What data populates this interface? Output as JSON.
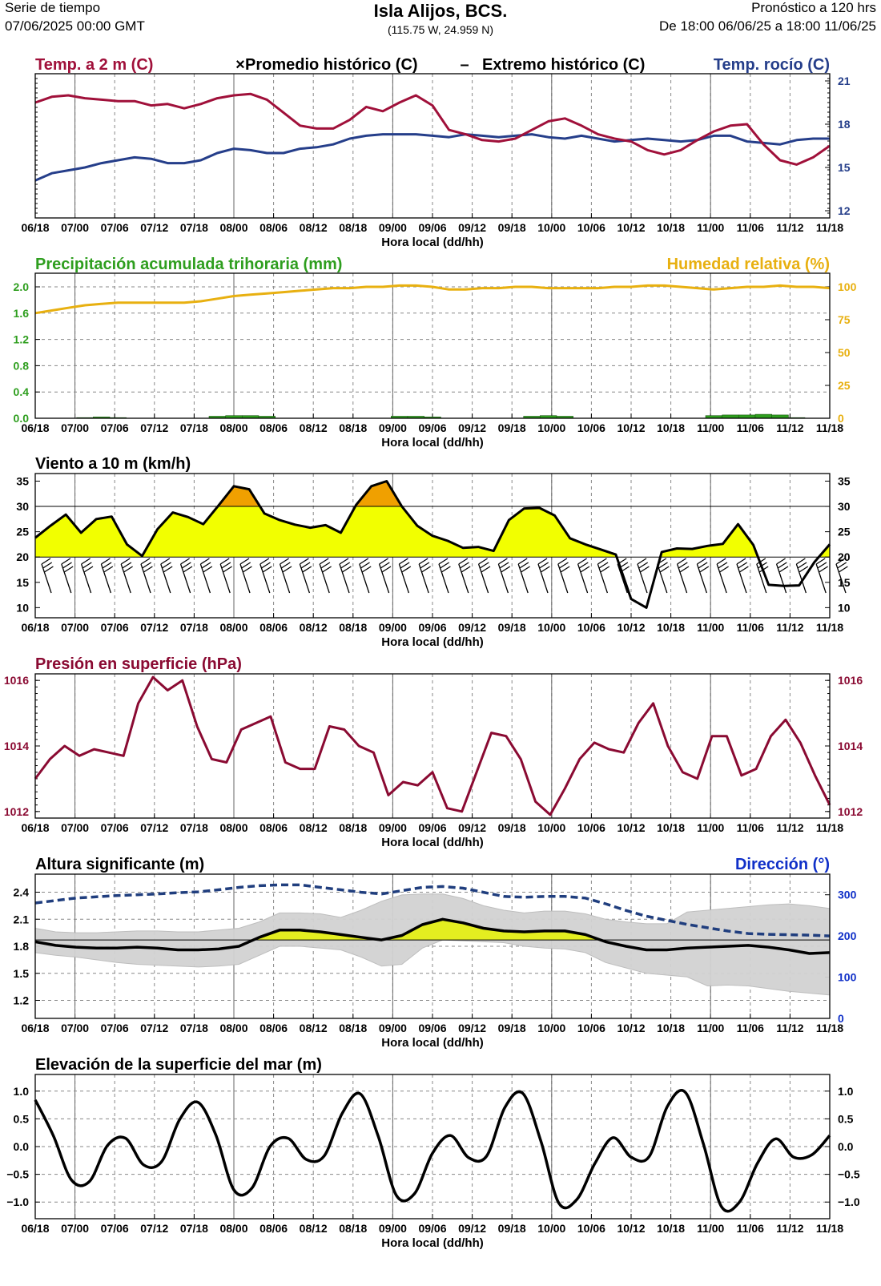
{
  "header": {
    "left1": "Serie de tiempo",
    "left2": "07/06/2025 00:00 GMT",
    "title": "Isla Alijos,  BCS.",
    "coords": "(115.75 W, 24.959 N)",
    "right1": "Pronóstico a 120 hrs",
    "right2": "De 18:00 06/06/25 a 18:00 11/06/25"
  },
  "xaxis": {
    "label": "Hora local (dd/hh)",
    "ticks": [
      "06/18",
      "07/00",
      "07/06",
      "07/12",
      "07/18",
      "08/00",
      "08/06",
      "08/12",
      "08/18",
      "09/00",
      "09/06",
      "09/12",
      "09/18",
      "10/00",
      "10/06",
      "10/12",
      "10/18",
      "11/00",
      "11/06",
      "11/12",
      "11/18"
    ]
  },
  "colors": {
    "temp": "#A0103A",
    "dew": "#253E8A",
    "precip": "#2E9E1E",
    "humidity": "#E8B010",
    "wind_fill_yellow": "#F2FF00",
    "wind_fill_orange": "#F0A000",
    "pressure": "#8A0A32",
    "wave_fill": "#E4EE20",
    "wave_band": "#D2D2D2",
    "direction": "#1030C8",
    "direction_line": "#203E7E"
  },
  "chart_data": [
    {
      "type": "line",
      "title": "Temp. a 2 m (C)",
      "legend": [
        "Promedio histórico (C)",
        "Extremo histórico (C)"
      ],
      "legend_symbols": [
        "×",
        "–"
      ],
      "y2label": "Temp. rocío (C)",
      "yticks_right": [
        "21",
        "18",
        "15",
        "12"
      ],
      "ylim": [
        11.5,
        21.5
      ],
      "series": [
        {
          "name": "Temp. a 2 m (C)",
          "values": [
            19.5,
            19.9,
            20.0,
            19.8,
            19.7,
            19.6,
            19.6,
            19.3,
            19.4,
            19.1,
            19.4,
            19.8,
            20.0,
            20.1,
            19.7,
            18.8,
            17.9,
            17.7,
            17.7,
            18.3,
            19.2,
            18.9,
            19.5,
            20.0,
            19.3,
            17.6,
            17.3,
            16.9,
            16.8,
            17.0,
            17.6,
            18.2,
            18.4,
            17.9,
            17.3,
            17.0,
            16.8,
            16.2,
            15.9,
            16.2,
            16.9,
            17.5,
            17.9,
            18.0,
            16.6,
            15.5,
            15.2,
            15.7,
            16.5
          ]
        },
        {
          "name": "Temp. rocío (C)",
          "values": [
            14.1,
            14.6,
            14.8,
            15.0,
            15.3,
            15.5,
            15.7,
            15.6,
            15.3,
            15.3,
            15.5,
            16.0,
            16.3,
            16.2,
            16.0,
            16.0,
            16.3,
            16.4,
            16.6,
            17.0,
            17.2,
            17.3,
            17.3,
            17.3,
            17.2,
            17.1,
            17.3,
            17.2,
            17.1,
            17.2,
            17.3,
            17.1,
            17.0,
            17.2,
            17.0,
            16.8,
            16.9,
            17.0,
            16.9,
            16.8,
            16.9,
            17.2,
            17.2,
            16.8,
            16.7,
            16.6,
            16.9,
            17.0,
            17.0
          ]
        }
      ]
    },
    {
      "type": "line",
      "title": "Precipitación acumulada trihoraria (mm)",
      "y2label": "Humedad relativa (%)",
      "yticks_left": [
        "2.0",
        "1.6",
        "1.2",
        "0.8",
        "0.4",
        "0.0"
      ],
      "yticks_right": [
        "100",
        "75",
        "50",
        "25",
        "0"
      ],
      "ylim": [
        0,
        2.0
      ],
      "y2lim": [
        0,
        100
      ],
      "series": [
        {
          "name": "Humedad relativa (%)",
          "values": [
            80,
            82,
            84,
            86,
            87,
            88,
            88,
            88,
            88,
            88,
            89,
            91,
            93,
            94,
            95,
            96,
            97,
            98,
            99,
            99,
            100,
            100,
            101,
            101,
            100,
            98,
            98,
            99,
            99,
            100,
            100,
            99,
            99,
            99,
            99,
            100,
            100,
            101,
            101,
            100,
            99,
            98,
            99,
            100,
            100,
            101,
            100,
            100,
            99
          ]
        },
        {
          "name": "Precipitación acumulada trihoraria (mm)",
          "values": [
            0,
            0,
            0,
            0.01,
            0.02,
            0.01,
            0,
            0,
            0,
            0,
            0,
            0.03,
            0.04,
            0.04,
            0.03,
            0,
            0,
            0,
            0,
            0,
            0,
            0,
            0.03,
            0.03,
            0.02,
            0,
            0,
            0,
            0,
            0,
            0.03,
            0.04,
            0.03,
            0,
            0,
            0,
            0,
            0,
            0,
            0,
            0,
            0.04,
            0.05,
            0.05,
            0.06,
            0.05,
            0.01,
            0,
            0
          ]
        }
      ]
    },
    {
      "type": "area",
      "title": "Viento a 10 m (km/h)",
      "yticks": [
        "35",
        "30",
        "25",
        "20",
        "15",
        "10"
      ],
      "ylim": [
        8,
        36.5
      ],
      "series": [
        {
          "name": "Viento a 10 m (km/h)",
          "values": [
            23.8,
            26.2,
            28.4,
            24.8,
            27.5,
            28.0,
            22.5,
            20.2,
            25.5,
            28.8,
            27.9,
            26.5,
            30.2,
            34.0,
            33.4,
            28.6,
            27.3,
            26.4,
            25.8,
            26.3,
            24.8,
            30.3,
            34.0,
            35.0,
            30.0,
            26.2,
            24.2,
            23.2,
            21.8,
            22.0,
            21.2,
            27.3,
            29.6,
            29.7,
            28.2,
            23.7,
            22.5,
            21.5,
            20.5,
            11.7,
            10.0,
            21.0,
            21.7,
            21.6,
            22.2,
            22.6,
            26.5,
            22.4,
            14.5,
            14.3,
            14.4,
            19.0,
            22.5
          ]
        }
      ]
    },
    {
      "type": "line",
      "title": "Presión en superficie (hPa)",
      "yticks": [
        "1016",
        "1014",
        "1012"
      ],
      "ylim": [
        1011.8,
        1016.2
      ],
      "series": [
        {
          "name": "Presión en superficie (hPa)",
          "values": [
            1013.0,
            1013.6,
            1014.0,
            1013.7,
            1013.9,
            1013.8,
            1013.7,
            1015.3,
            1016.1,
            1015.7,
            1016.0,
            1014.6,
            1013.6,
            1013.5,
            1014.5,
            1014.7,
            1014.9,
            1013.5,
            1013.3,
            1013.3,
            1014.6,
            1014.5,
            1014.0,
            1013.8,
            1012.5,
            1012.9,
            1012.8,
            1013.2,
            1012.1,
            1012.0,
            1013.2,
            1014.4,
            1014.3,
            1013.6,
            1012.3,
            1011.9,
            1012.7,
            1013.6,
            1014.1,
            1013.9,
            1013.8,
            1014.7,
            1015.3,
            1014.0,
            1013.2,
            1013.0,
            1014.3,
            1014.3,
            1013.1,
            1013.3,
            1014.3,
            1014.8,
            1014.1,
            1013.1,
            1012.2
          ]
        }
      ]
    },
    {
      "type": "area",
      "title": "Altura significante (m)",
      "y2label": "Dirección (°)",
      "yticks_left": [
        "2.4",
        "2.1",
        "1.8",
        "1.5",
        "1.2"
      ],
      "yticks_right": [
        "300",
        "200",
        "100",
        "0"
      ],
      "ylim": [
        1.0,
        2.6
      ],
      "y2lim": [
        0,
        350
      ],
      "series": [
        {
          "name": "Altura significante (m)",
          "values": [
            1.85,
            1.81,
            1.79,
            1.78,
            1.78,
            1.79,
            1.78,
            1.76,
            1.76,
            1.77,
            1.8,
            1.9,
            1.98,
            1.98,
            1.96,
            1.93,
            1.9,
            1.87,
            1.92,
            2.04,
            2.1,
            2.06,
            2.0,
            1.97,
            1.96,
            1.97,
            1.97,
            1.93,
            1.85,
            1.8,
            1.76,
            1.76,
            1.78,
            1.79,
            1.8,
            1.81,
            1.79,
            1.76,
            1.72,
            1.73
          ]
        },
        {
          "name": "Rango superior (m)",
          "values": [
            2.0,
            1.96,
            1.95,
            1.95,
            1.96,
            1.97,
            1.97,
            1.96,
            1.96,
            1.98,
            2.0,
            2.07,
            2.17,
            2.17,
            2.16,
            2.12,
            2.2,
            2.3,
            2.37,
            2.38,
            2.38,
            2.33,
            2.25,
            2.2,
            2.17,
            2.19,
            2.19,
            2.16,
            2.1,
            2.07,
            2.05,
            2.05,
            2.18,
            2.2,
            2.22,
            2.24,
            2.26,
            2.27,
            2.25,
            2.22
          ]
        },
        {
          "name": "Rango inferior (m)",
          "values": [
            1.73,
            1.7,
            1.68,
            1.65,
            1.62,
            1.6,
            1.59,
            1.58,
            1.57,
            1.58,
            1.6,
            1.7,
            1.8,
            1.8,
            1.78,
            1.76,
            1.68,
            1.58,
            1.6,
            1.78,
            1.87,
            1.86,
            1.85,
            1.84,
            1.8,
            1.78,
            1.77,
            1.73,
            1.62,
            1.56,
            1.5,
            1.48,
            1.46,
            1.36,
            1.37,
            1.36,
            1.33,
            1.3,
            1.28,
            1.26
          ]
        },
        {
          "name": "Dirección (°)",
          "values": [
            280,
            286,
            292,
            295,
            298,
            300,
            302,
            305,
            307,
            312,
            318,
            322,
            324,
            324,
            318,
            312,
            306,
            302,
            310,
            318,
            320,
            316,
            306,
            296,
            294,
            296,
            296,
            292,
            278,
            262,
            248,
            238,
            228,
            220,
            212,
            206,
            204,
            203,
            202,
            200
          ]
        }
      ]
    },
    {
      "type": "line",
      "title": "Elevación de la superficie del mar (m)",
      "yticks": [
        "1.0",
        "0.5",
        "0.0",
        "−0.5",
        "−1.0"
      ],
      "ylim": [
        -1.3,
        1.3
      ],
      "series": [
        {
          "name": "Elevación de la superficie del mar (m)",
          "values": [
            0.84,
            0.2,
            -0.6,
            -0.63,
            0.02,
            0.15,
            -0.33,
            -0.27,
            0.49,
            0.8,
            0.21,
            -0.78,
            -0.75,
            0.0,
            0.15,
            -0.23,
            -0.17,
            0.6,
            0.95,
            0.18,
            -0.88,
            -0.85,
            -0.12,
            0.2,
            -0.2,
            -0.17,
            0.7,
            0.96,
            0.1,
            -1.02,
            -0.95,
            -0.3,
            0.16,
            -0.19,
            -0.18,
            0.72,
            0.98,
            0.05,
            -1.08,
            -1.0,
            -0.3,
            0.14,
            -0.19,
            -0.15,
            0.2
          ]
        }
      ]
    }
  ]
}
